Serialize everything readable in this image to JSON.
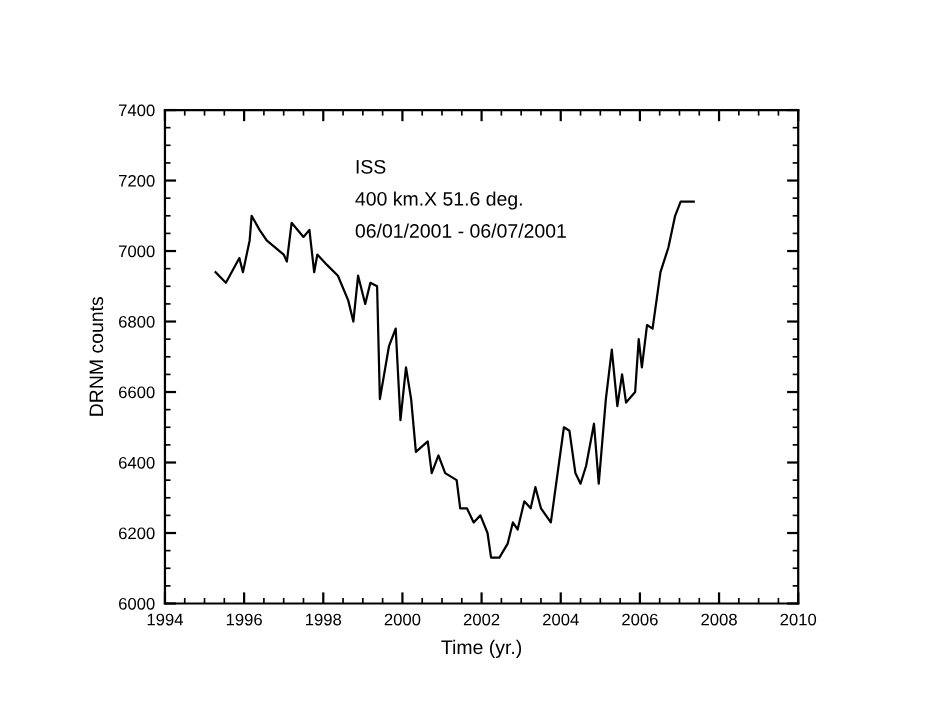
{
  "chart_data": {
    "type": "line",
    "xlabel": "Time (yr.)",
    "ylabel": "DRNM counts",
    "annotations": [
      "ISS",
      "400 km.X 51.6 deg.",
      "06/01/2001 - 06/07/2001"
    ],
    "xlim": [
      1994,
      2010
    ],
    "xticks": [
      1994,
      1996,
      1998,
      2000,
      2002,
      2004,
      2006,
      2008,
      2010
    ],
    "ylim": [
      6000,
      7400
    ],
    "yticks": [
      6000,
      6200,
      6400,
      6600,
      6800,
      7000,
      7200,
      7400
    ],
    "grid": false,
    "legend": false,
    "marker": "none",
    "line_style": "solid",
    "series": [
      {
        "color": "#000000",
        "x": [
          1995.28,
          1995.54,
          1995.88,
          1995.97,
          1996.14,
          1996.19,
          1996.39,
          1996.57,
          1997.0,
          1997.08,
          1997.2,
          1997.5,
          1997.65,
          1997.77,
          1997.85,
          1998.1,
          1998.37,
          1998.63,
          1998.76,
          1998.88,
          1999.06,
          1999.19,
          1999.36,
          1999.43,
          1999.66,
          1999.83,
          1999.95,
          2000.09,
          2000.22,
          2000.34,
          2000.64,
          2000.74,
          2000.91,
          2001.08,
          2001.37,
          2001.46,
          2001.63,
          2001.8,
          2001.97,
          2002.15,
          2002.24,
          2002.45,
          2002.66,
          2002.79,
          2002.91,
          2003.08,
          2003.24,
          2003.36,
          2003.5,
          2003.75,
          2004.08,
          2004.22,
          2004.37,
          2004.5,
          2004.64,
          2004.84,
          2004.96,
          2005.14,
          2005.29,
          2005.43,
          2005.55,
          2005.65,
          2005.88,
          2005.97,
          2006.05,
          2006.18,
          2006.32,
          2006.52,
          2006.72,
          2006.89,
          2007.03,
          2007.36
        ],
        "values": [
          6940,
          6910,
          6980,
          6940,
          7030,
          7100,
          7060,
          7030,
          6990,
          6970,
          7080,
          7040,
          7060,
          6940,
          6990,
          6960,
          6930,
          6860,
          6800,
          6930,
          6850,
          6910,
          6900,
          6580,
          6730,
          6780,
          6520,
          6670,
          6580,
          6430,
          6460,
          6370,
          6420,
          6370,
          6350,
          6270,
          6270,
          6230,
          6250,
          6200,
          6130,
          6130,
          6170,
          6230,
          6210,
          6290,
          6270,
          6330,
          6270,
          6230,
          6500,
          6490,
          6370,
          6340,
          6390,
          6510,
          6340,
          6580,
          6720,
          6560,
          6650,
          6570,
          6600,
          6750,
          6670,
          6790,
          6780,
          6940,
          7010,
          7100,
          7140,
          7140
        ]
      }
    ]
  }
}
